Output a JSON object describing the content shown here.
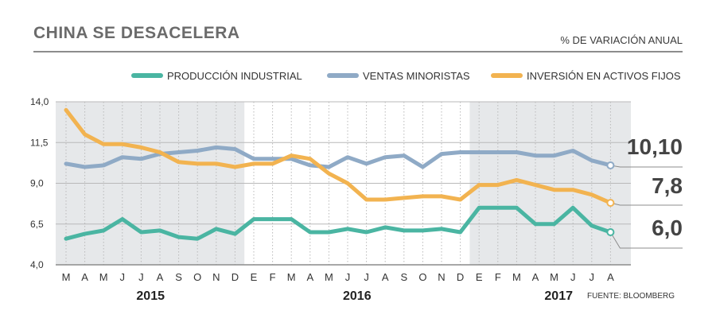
{
  "title": "CHINA SE DESACELERA",
  "subtitle": "% DE VARIACIÓN ANUAL",
  "source": "FUENTE: BLOOMBERG",
  "colors": {
    "produccion": "#4ab5a2",
    "ventas": "#8faac6",
    "inversion": "#f2b350",
    "shade": "#e6e8ea",
    "grid": "#b9b9b9",
    "axis": "#8c8c8c",
    "text": "#333333"
  },
  "chart_data": {
    "type": "line",
    "ylim": [
      4.0,
      14.0
    ],
    "yticks": [
      "14,0",
      "11,5",
      "9,0",
      "6,5",
      "4,0"
    ],
    "ytick_values": [
      14.0,
      11.5,
      9.0,
      6.5,
      4.0
    ],
    "grid": true,
    "legend_position": "top-right",
    "categories": [
      "M",
      "A",
      "M",
      "J",
      "J",
      "A",
      "S",
      "O",
      "N",
      "D",
      "E",
      "F",
      "M",
      "A",
      "M",
      "J",
      "J",
      "A",
      "S",
      "O",
      "N",
      "D",
      "E",
      "F",
      "M",
      "A",
      "M",
      "J",
      "J",
      "A"
    ],
    "years": [
      {
        "label": "2015",
        "start_index": 0,
        "end_index": 9
      },
      {
        "label": "2016",
        "start_index": 10,
        "end_index": 21
      },
      {
        "label": "2017",
        "start_index": 22,
        "end_index": 29
      }
    ],
    "series": [
      {
        "name": "PRODUCCIÓN INDUSTRIAL",
        "color_key": "produccion",
        "values": [
          5.6,
          5.9,
          6.1,
          6.8,
          6.0,
          6.1,
          5.7,
          5.6,
          6.2,
          5.9,
          6.8,
          6.8,
          6.8,
          6.0,
          6.0,
          6.2,
          6.0,
          6.3,
          6.1,
          6.1,
          6.2,
          6.0,
          7.5,
          7.5,
          7.5,
          6.5,
          6.5,
          7.5,
          6.4,
          6.0
        ],
        "end_label": "6,0"
      },
      {
        "name": "VENTAS MINORISTAS",
        "color_key": "ventas",
        "values": [
          10.2,
          10.0,
          10.1,
          10.6,
          10.5,
          10.8,
          10.9,
          11.0,
          11.2,
          11.1,
          10.5,
          10.5,
          10.5,
          10.1,
          10.0,
          10.6,
          10.2,
          10.6,
          10.7,
          10.0,
          10.8,
          10.9,
          10.9,
          10.9,
          10.9,
          10.7,
          10.7,
          11.0,
          10.4,
          10.1
        ],
        "end_label": "10,10"
      },
      {
        "name": "INVERSIÓN EN ACTIVOS FIJOS",
        "color_key": "inversion",
        "values": [
          13.5,
          12.0,
          11.4,
          11.4,
          11.2,
          10.9,
          10.3,
          10.2,
          10.2,
          10.0,
          10.2,
          10.2,
          10.7,
          10.5,
          9.6,
          9.0,
          8.0,
          8.0,
          8.1,
          8.2,
          8.2,
          8.0,
          8.9,
          8.9,
          9.2,
          8.9,
          8.6,
          8.6,
          8.3,
          7.8
        ],
        "end_label": "7,8"
      }
    ]
  }
}
